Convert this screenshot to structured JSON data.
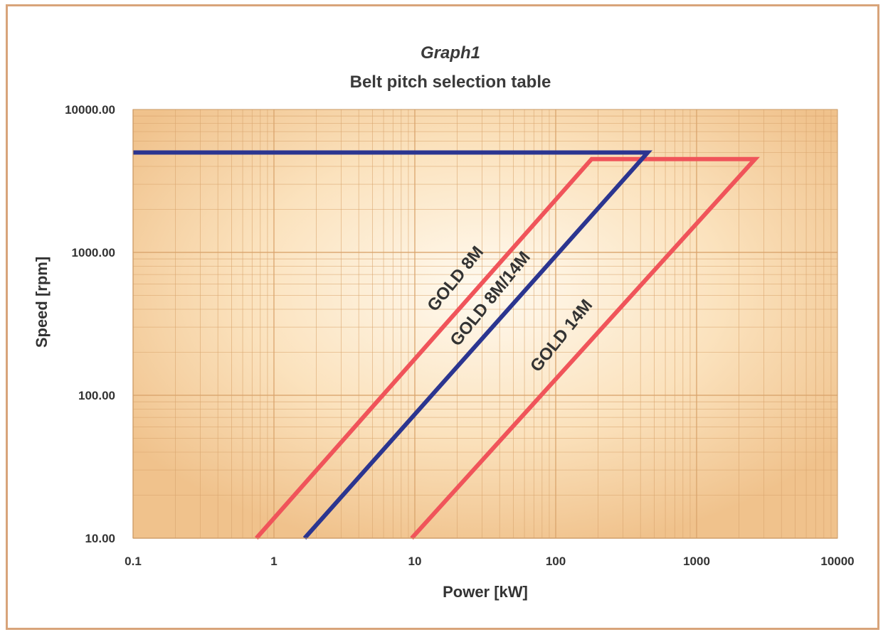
{
  "chart_data": {
    "type": "line",
    "title": "Graph1",
    "subtitle": "Belt pitch selection table",
    "xlabel": "Power [kW]",
    "ylabel": "Speed [rpm]",
    "x_scale": "log",
    "y_scale": "log",
    "xlim": [
      0.1,
      10000
    ],
    "ylim": [
      10,
      10000
    ],
    "x_ticks": [
      "0.1",
      "1",
      "10",
      "100",
      "1000",
      "10000"
    ],
    "y_ticks": [
      "10000.00",
      "1000.00",
      "100.00",
      "10.00"
    ],
    "grid": true,
    "series": [
      {
        "name": "GOLD 8M",
        "color": "#f0545a",
        "points": [
          [
            0.75,
            10
          ],
          [
            180,
            4500
          ],
          [
            450,
            4500
          ]
        ]
      },
      {
        "name": "GOLD 8M/14M",
        "color": "#2b3590",
        "points": [
          [
            0.1,
            5000
          ],
          [
            450,
            5000
          ],
          [
            1.65,
            10
          ]
        ]
      },
      {
        "name": "GOLD 14M",
        "color": "#f0545a",
        "points": [
          [
            9.5,
            10
          ],
          [
            2600,
            4500
          ],
          [
            450,
            4500
          ]
        ]
      }
    ]
  },
  "colors": {
    "plot_bg_edge": "#f0c58f",
    "plot_bg_center": "#fff8ea",
    "grid": "#d9a46c",
    "frame": "#d8a47a"
  }
}
